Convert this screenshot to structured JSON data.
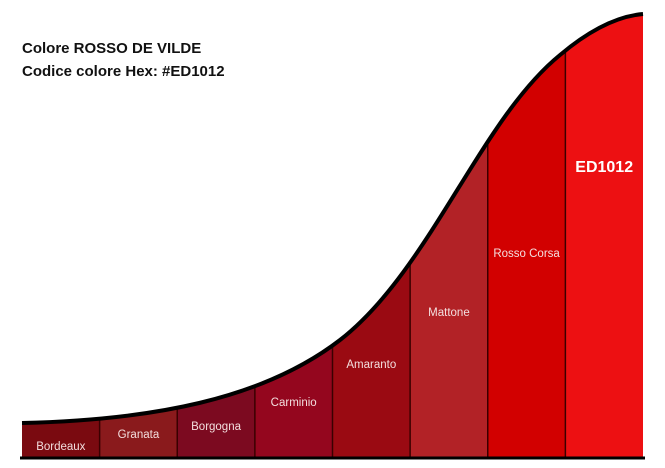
{
  "header": {
    "title": "Colore ROSSO DE VILDE",
    "subtitle": "Codice colore Hex: #ED1012"
  },
  "swatches": [
    {
      "label": "Bordeaux",
      "color": "#7a0a10"
    },
    {
      "label": "Granata",
      "color": "#8a1a1c"
    },
    {
      "label": "Borgogna",
      "color": "#7c0a20"
    },
    {
      "label": "Carminio",
      "color": "#94061e"
    },
    {
      "label": "Amaranto",
      "color": "#9a0a12"
    },
    {
      "label": "Mattone",
      "color": "#b22226"
    },
    {
      "label": "Rosso Corsa",
      "color": "#d20000"
    },
    {
      "label": "ED1012",
      "color": "#ed1012"
    }
  ]
}
